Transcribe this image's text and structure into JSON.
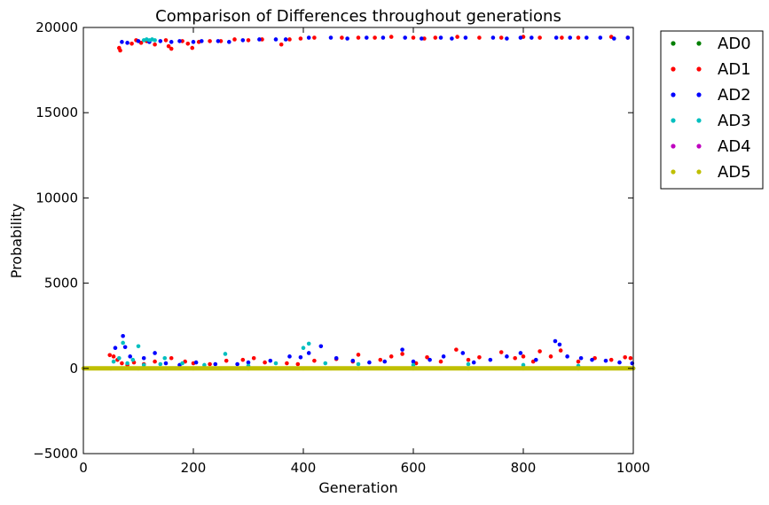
{
  "chart_data": {
    "type": "scatter",
    "title": "Comparison of Differences throughout generations",
    "xlabel": "Generation",
    "ylabel": "Probability",
    "xlim": [
      0,
      1000
    ],
    "ylim": [
      -5000,
      20000
    ],
    "xticks": [
      0,
      200,
      400,
      600,
      800,
      1000
    ],
    "yticks": [
      -5000,
      0,
      5000,
      10000,
      15000,
      20000
    ],
    "grid": false,
    "legend_position": "outside-right",
    "series": [
      {
        "name": "AD0",
        "color": "#007f00",
        "points": [
          [
            50,
            0
          ],
          [
            100,
            0
          ],
          [
            200,
            0
          ],
          [
            300,
            0
          ],
          [
            400,
            0
          ],
          [
            500,
            0
          ],
          [
            600,
            0
          ],
          [
            700,
            0
          ],
          [
            800,
            0
          ],
          [
            900,
            0
          ],
          [
            1000,
            0
          ]
        ]
      },
      {
        "name": "AD1",
        "color": "#ff0000",
        "points": [
          [
            65,
            18800
          ],
          [
            67,
            18650
          ],
          [
            88,
            19050
          ],
          [
            96,
            19250
          ],
          [
            105,
            19100
          ],
          [
            115,
            19200
          ],
          [
            130,
            19000
          ],
          [
            150,
            19250
          ],
          [
            155,
            18900
          ],
          [
            160,
            18750
          ],
          [
            180,
            19200
          ],
          [
            190,
            19050
          ],
          [
            198,
            18800
          ],
          [
            210,
            19150
          ],
          [
            230,
            19200
          ],
          [
            250,
            19200
          ],
          [
            275,
            19300
          ],
          [
            300,
            19250
          ],
          [
            325,
            19300
          ],
          [
            360,
            19000
          ],
          [
            375,
            19300
          ],
          [
            395,
            19350
          ],
          [
            420,
            19400
          ],
          [
            470,
            19400
          ],
          [
            500,
            19400
          ],
          [
            530,
            19400
          ],
          [
            560,
            19450
          ],
          [
            600,
            19400
          ],
          [
            620,
            19350
          ],
          [
            640,
            19400
          ],
          [
            680,
            19450
          ],
          [
            720,
            19400
          ],
          [
            760,
            19400
          ],
          [
            800,
            19450
          ],
          [
            830,
            19400
          ],
          [
            870,
            19400
          ],
          [
            900,
            19400
          ],
          [
            960,
            19450
          ],
          [
            990,
            19400
          ],
          [
            48,
            780
          ],
          [
            55,
            700
          ],
          [
            62,
            500
          ],
          [
            70,
            300
          ],
          [
            80,
            200
          ],
          [
            92,
            350
          ],
          [
            110,
            250
          ],
          [
            130,
            400
          ],
          [
            160,
            600
          ],
          [
            185,
            400
          ],
          [
            200,
            300
          ],
          [
            230,
            250
          ],
          [
            260,
            450
          ],
          [
            290,
            500
          ],
          [
            310,
            600
          ],
          [
            330,
            350
          ],
          [
            370,
            300
          ],
          [
            390,
            250
          ],
          [
            420,
            450
          ],
          [
            460,
            550
          ],
          [
            490,
            400
          ],
          [
            500,
            800
          ],
          [
            540,
            500
          ],
          [
            560,
            700
          ],
          [
            580,
            850
          ],
          [
            605,
            300
          ],
          [
            625,
            650
          ],
          [
            650,
            400
          ],
          [
            678,
            1100
          ],
          [
            700,
            500
          ],
          [
            720,
            650
          ],
          [
            760,
            950
          ],
          [
            785,
            600
          ],
          [
            800,
            700
          ],
          [
            818,
            400
          ],
          [
            830,
            1000
          ],
          [
            850,
            700
          ],
          [
            868,
            1050
          ],
          [
            900,
            400
          ],
          [
            930,
            600
          ],
          [
            960,
            500
          ],
          [
            985,
            650
          ],
          [
            995,
            600
          ]
        ]
      },
      {
        "name": "AD2",
        "color": "#0000ff",
        "points": [
          [
            70,
            19150
          ],
          [
            80,
            19100
          ],
          [
            100,
            19200
          ],
          [
            120,
            19150
          ],
          [
            140,
            19200
          ],
          [
            160,
            19150
          ],
          [
            175,
            19200
          ],
          [
            200,
            19150
          ],
          [
            215,
            19200
          ],
          [
            245,
            19200
          ],
          [
            265,
            19150
          ],
          [
            290,
            19250
          ],
          [
            320,
            19300
          ],
          [
            350,
            19300
          ],
          [
            368,
            19300
          ],
          [
            410,
            19400
          ],
          [
            450,
            19400
          ],
          [
            480,
            19350
          ],
          [
            515,
            19400
          ],
          [
            545,
            19400
          ],
          [
            585,
            19400
          ],
          [
            615,
            19350
          ],
          [
            650,
            19400
          ],
          [
            670,
            19350
          ],
          [
            695,
            19400
          ],
          [
            745,
            19400
          ],
          [
            770,
            19350
          ],
          [
            795,
            19400
          ],
          [
            815,
            19400
          ],
          [
            860,
            19400
          ],
          [
            885,
            19400
          ],
          [
            915,
            19400
          ],
          [
            940,
            19400
          ],
          [
            965,
            19350
          ],
          [
            990,
            19400
          ],
          [
            58,
            1200
          ],
          [
            72,
            1900
          ],
          [
            76,
            1250
          ],
          [
            85,
            700
          ],
          [
            110,
            600
          ],
          [
            130,
            900
          ],
          [
            150,
            300
          ],
          [
            175,
            200
          ],
          [
            205,
            350
          ],
          [
            240,
            250
          ],
          [
            280,
            250
          ],
          [
            300,
            350
          ],
          [
            340,
            450
          ],
          [
            375,
            700
          ],
          [
            395,
            650
          ],
          [
            410,
            900
          ],
          [
            432,
            1300
          ],
          [
            460,
            600
          ],
          [
            490,
            450
          ],
          [
            520,
            350
          ],
          [
            548,
            400
          ],
          [
            580,
            1100
          ],
          [
            600,
            400
          ],
          [
            630,
            500
          ],
          [
            655,
            700
          ],
          [
            690,
            900
          ],
          [
            710,
            350
          ],
          [
            740,
            500
          ],
          [
            770,
            700
          ],
          [
            795,
            900
          ],
          [
            823,
            500
          ],
          [
            858,
            1600
          ],
          [
            866,
            1400
          ],
          [
            880,
            700
          ],
          [
            905,
            600
          ],
          [
            925,
            500
          ],
          [
            950,
            450
          ],
          [
            975,
            350
          ],
          [
            998,
            300
          ]
        ]
      },
      {
        "name": "AD3",
        "color": "#00bfbf",
        "points": [
          [
            110,
            19250
          ],
          [
            115,
            19300
          ],
          [
            120,
            19250
          ],
          [
            125,
            19300
          ],
          [
            130,
            19250
          ],
          [
            55,
            400
          ],
          [
            65,
            600
          ],
          [
            72,
            1500
          ],
          [
            80,
            300
          ],
          [
            90,
            500
          ],
          [
            100,
            1300
          ],
          [
            110,
            200
          ],
          [
            140,
            250
          ],
          [
            148,
            600
          ],
          [
            180,
            300
          ],
          [
            220,
            200
          ],
          [
            258,
            850
          ],
          [
            300,
            150
          ],
          [
            350,
            300
          ],
          [
            400,
            1200
          ],
          [
            410,
            1450
          ],
          [
            440,
            300
          ],
          [
            500,
            250
          ],
          [
            600,
            200
          ],
          [
            700,
            250
          ],
          [
            800,
            200
          ],
          [
            900,
            150
          ]
        ]
      },
      {
        "name": "AD4",
        "color": "#bf00bf",
        "points": [
          [
            50,
            0
          ],
          [
            150,
            0
          ],
          [
            250,
            0
          ],
          [
            350,
            0
          ],
          [
            450,
            0
          ],
          [
            550,
            0
          ],
          [
            650,
            0
          ],
          [
            750,
            0
          ],
          [
            850,
            0
          ],
          [
            950,
            0
          ]
        ]
      },
      {
        "name": "AD5",
        "color": "#bfbf00",
        "points": [
          [
            0,
            0
          ],
          [
            100,
            0
          ],
          [
            200,
            0
          ],
          [
            300,
            0
          ],
          [
            400,
            0
          ],
          [
            500,
            0
          ],
          [
            600,
            0
          ],
          [
            700,
            0
          ],
          [
            800,
            0
          ],
          [
            900,
            0
          ],
          [
            1000,
            0
          ]
        ]
      }
    ]
  }
}
